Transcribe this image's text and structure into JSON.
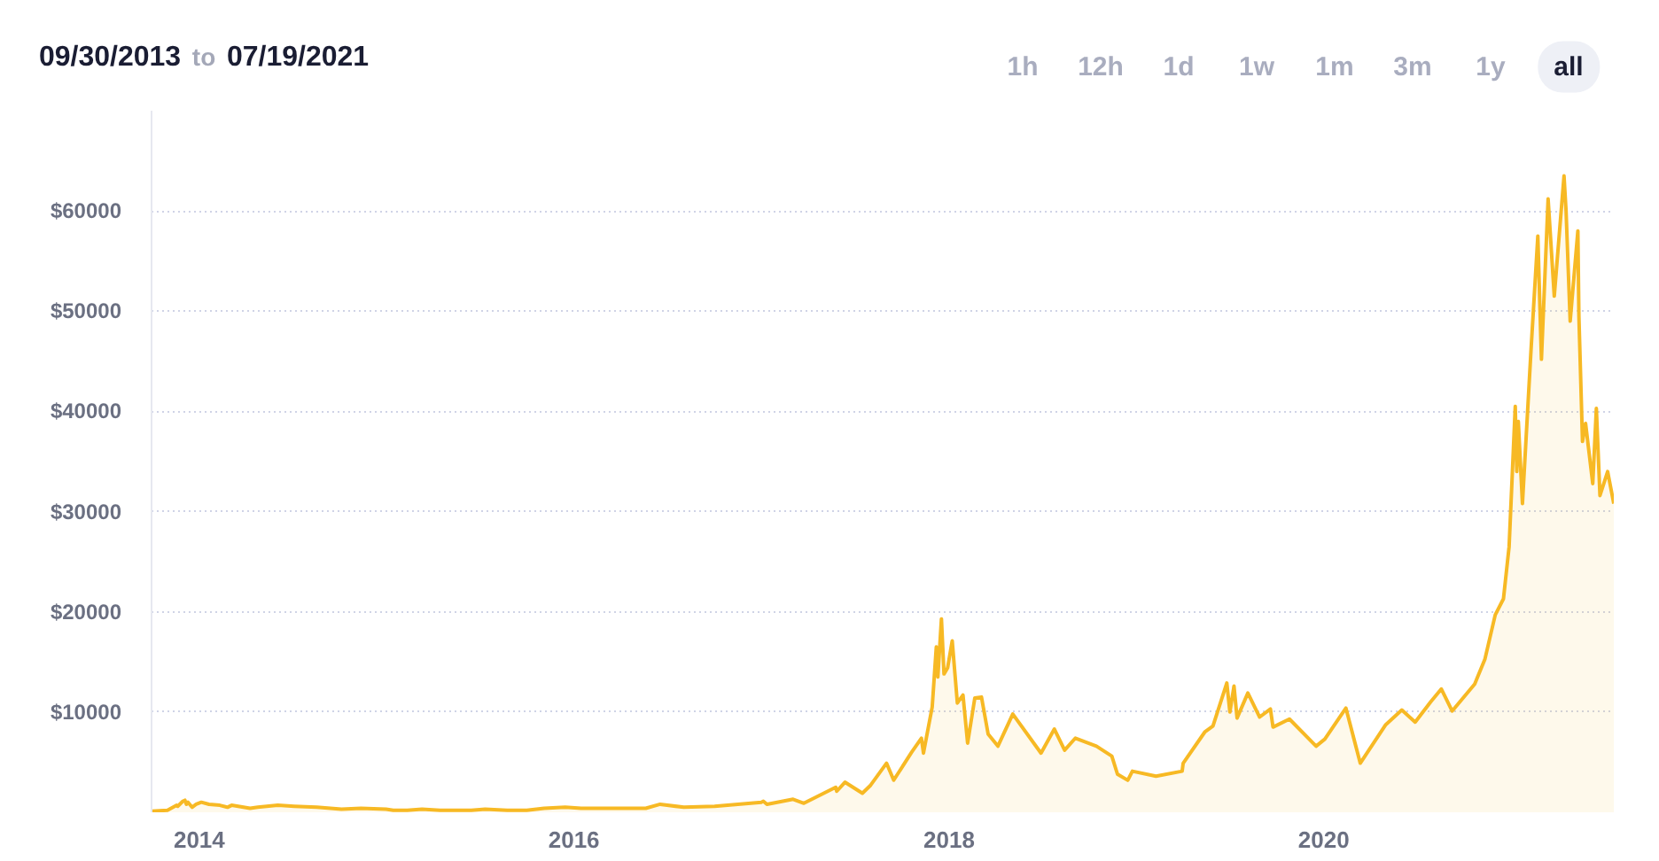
{
  "chart_data": {
    "type": "area",
    "title": "09/30/2013 to 07/19/2021",
    "annotations": [
      "1h",
      "12h",
      "1d",
      "1w",
      "1m",
      "3m",
      "1y",
      "all"
    ],
    "x": [
      "2013-09-30",
      "2013-10-31",
      "2013-11-18",
      "2013-11-20",
      "2013-11-30",
      "2013-12-04",
      "2013-12-07",
      "2013-12-10",
      "2013-12-18",
      "2013-12-26",
      "2014-01-05",
      "2014-01-20",
      "2014-02-10",
      "2014-02-25",
      "2014-03-05",
      "2014-04-10",
      "2014-04-25",
      "2014-06-03",
      "2014-07-05",
      "2014-08-18",
      "2014-10-05",
      "2014-11-12",
      "2014-12-31",
      "2015-01-14",
      "2015-02-10",
      "2015-03-11",
      "2015-04-15",
      "2015-06-15",
      "2015-07-12",
      "2015-08-24",
      "2015-10-01",
      "2015-11-04",
      "2015-12-15",
      "2016-01-15",
      "2016-03-01",
      "2016-05-20",
      "2016-06-17",
      "2016-08-02",
      "2016-10-01",
      "2016-12-31",
      "2017-01-04",
      "2017-01-11",
      "2017-03-03",
      "2017-03-24",
      "2017-05-25",
      "2017-05-27",
      "2017-06-12",
      "2017-07-16",
      "2017-08-01",
      "2017-09-01",
      "2017-09-15",
      "2017-10-20",
      "2017-11-08",
      "2017-11-12",
      "2017-11-29",
      "2017-12-07",
      "2017-12-10",
      "2017-12-17",
      "2017-12-22",
      "2017-12-29",
      "2018-01-07",
      "2018-01-17",
      "2018-01-28",
      "2018-02-06",
      "2018-02-20",
      "2018-03-05",
      "2018-03-18",
      "2018-04-06",
      "2018-05-05",
      "2018-06-29",
      "2018-07-25",
      "2018-08-14",
      "2018-09-04",
      "2018-10-15",
      "2018-11-14",
      "2018-11-25",
      "2018-12-15",
      "2018-12-24",
      "2019-02-08",
      "2019-03-31",
      "2019-04-02",
      "2019-05-14",
      "2019-05-30",
      "2019-06-26",
      "2019-07-02",
      "2019-07-10",
      "2019-07-16",
      "2019-08-06",
      "2019-08-29",
      "2019-09-19",
      "2019-09-24",
      "2019-10-26",
      "2019-12-17",
      "2020-01-03",
      "2020-02-13",
      "2020-03-12",
      "2020-04-30",
      "2020-06-01",
      "2020-06-27",
      "2020-07-27",
      "2020-08-17",
      "2020-09-07",
      "2020-10-21",
      "2020-11-10",
      "2020-11-30",
      "2020-12-16",
      "2020-12-27",
      "2021-01-08",
      "2021-01-11",
      "2021-01-14",
      "2021-01-22",
      "2021-02-08",
      "2021-02-21",
      "2021-02-28",
      "2021-03-13",
      "2021-03-25",
      "2021-04-13",
      "2021-04-17",
      "2021-04-25",
      "2021-05-10",
      "2021-05-12",
      "2021-05-19",
      "2021-05-25",
      "2021-06-08",
      "2021-06-15",
      "2021-06-22",
      "2021-07-07",
      "2021-07-19"
    ],
    "series": [
      {
        "color": "#f7b924",
        "values": [
          100,
          200,
          700,
          600,
          1100,
          1200,
          800,
          1000,
          500,
          800,
          1000,
          800,
          700,
          500,
          700,
          400,
          500,
          700,
          600,
          500,
          300,
          400,
          300,
          200,
          200,
          300,
          200,
          200,
          300,
          200,
          200,
          400,
          500,
          400,
          400,
          400,
          800,
          500,
          600,
          1000,
          1100,
          800,
          1300,
          900,
          2500,
          2100,
          3000,
          1900,
          2700,
          4900,
          3200,
          6000,
          7400,
          5900,
          10500,
          16500,
          13500,
          19300,
          13800,
          14400,
          17100,
          10900,
          11700,
          6900,
          11400,
          11500,
          7800,
          6600,
          9800,
          5900,
          8300,
          6200,
          7400,
          6600,
          5600,
          3800,
          3200,
          4100,
          3600,
          4100,
          4900,
          8000,
          8600,
          12900,
          10000,
          12600,
          9400,
          11900,
          9500,
          10300,
          8500,
          9300,
          6600,
          7300,
          10400,
          4900,
          8700,
          10200,
          9000,
          11000,
          12300,
          10100,
          12800,
          15300,
          19700,
          21300,
          26500,
          40500,
          34000,
          39000,
          30800,
          46400,
          57500,
          45200,
          61200,
          51500,
          63500,
          60000,
          49000,
          58000,
          49500,
          37000,
          38800,
          32800,
          40300,
          31600,
          34000,
          30800
        ]
      }
    ],
    "xlim": [
      "2013-09-30",
      "2021-07-19"
    ],
    "xticks": [
      "2014",
      "2016",
      "2018",
      "2020"
    ],
    "ylim": [
      0,
      70000
    ],
    "yticks": [
      {
        "value": 10000,
        "label": "$10000"
      },
      {
        "value": 20000,
        "label": "$20000"
      },
      {
        "value": 30000,
        "label": "$30000"
      },
      {
        "value": 40000,
        "label": "$40000"
      },
      {
        "value": 50000,
        "label": "$50000"
      },
      {
        "value": 60000,
        "label": "$60000"
      }
    ],
    "grid": "y"
  }
}
